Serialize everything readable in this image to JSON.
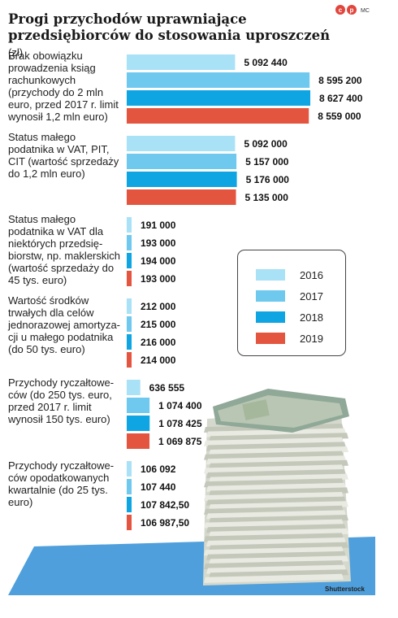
{
  "header": {
    "title": "Progi przychodów uprawniające przedsiębiorców do stosowania uproszczeń",
    "unit": "(zł)",
    "copyright_icons": [
      "c",
      "p"
    ],
    "author": "MC"
  },
  "colors": {
    "2016": "#a9e1f6",
    "2017": "#6fc9ef",
    "2018": "#0fa5e2",
    "2019": "#e4553f",
    "floor": "#4f9fdc"
  },
  "credit": "Shutterstock",
  "chart_data": {
    "type": "bar",
    "orientation": "horizontal",
    "title": "Progi przychodów uprawniające przedsiębiorców do stosowania uproszczeń",
    "unit": "(zł)",
    "legend_position": "right",
    "series_names": [
      "2016",
      "2017",
      "2018",
      "2019"
    ],
    "groups": [
      {
        "label": [
          "Brak obowiązku",
          "prowadzenia ksiąg",
          "rachunkowych",
          "(przychody do 2 mln",
          "euro, przed 2017 r. limit",
          "wynosił 1,2 mln euro)"
        ],
        "values": [
          5092440,
          8595200,
          8627400,
          8559000
        ],
        "value_labels": [
          "5 092 440",
          "8 595 200",
          "8 627 400",
          "8 559 000"
        ]
      },
      {
        "label": [
          "Status małego",
          "podatnika w VAT, PIT,",
          "CIT (wartość sprzedaży",
          "do 1,2 mln euro)"
        ],
        "values": [
          5092000,
          5157000,
          5176000,
          5135000
        ],
        "value_labels": [
          "5 092 000",
          "5 157 000",
          "5 176 000",
          "5 135 000"
        ]
      },
      {
        "label": [
          "Status małego",
          "podatnika w VAT dla",
          "niektórych przedsię-",
          "biorstw, np. maklerskich",
          "(wartość sprzedaży do",
          "45 tys. euro)"
        ],
        "values": [
          191000,
          193000,
          194000,
          193000
        ],
        "value_labels": [
          "191 000",
          "193 000",
          "194 000",
          "193 000"
        ]
      },
      {
        "label": [
          "Wartość środków",
          "trwałych dla celów",
          "jednorazowej amortyza-",
          "cji u małego podatnika",
          "(do 50 tys. euro)"
        ],
        "values": [
          212000,
          215000,
          216000,
          214000
        ],
        "value_labels": [
          "212 000",
          "215 000",
          "216 000",
          "214 000"
        ]
      },
      {
        "label": [
          "Przychody ryczałtowe-",
          "ców (do 250 tys. euro,",
          "przed  2017 r. limit",
          "wynosił 150 tys. euro)"
        ],
        "values": [
          636555,
          1074400,
          1078425,
          1069875
        ],
        "value_labels": [
          "636 555",
          "1 074 400",
          "1 078 425",
          "1 069 875"
        ]
      },
      {
        "label": [
          "Przychody ryczałtowe-",
          "ców opodatkowanych",
          "kwartalnie (do 25 tys.",
          "euro)"
        ],
        "values": [
          106092,
          107440,
          107842.5,
          106987.5
        ],
        "value_labels": [
          "106 092",
          "107 440",
          "107 842,50",
          "106 987,50"
        ]
      }
    ]
  }
}
